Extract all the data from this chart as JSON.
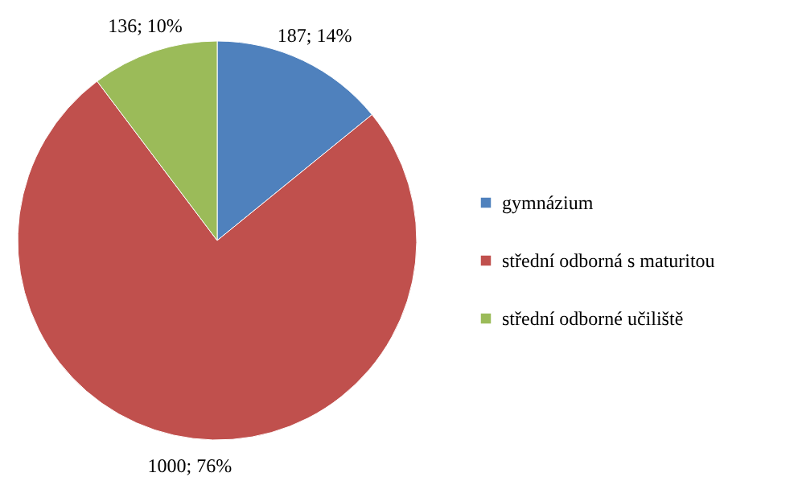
{
  "chart_data": {
    "type": "pie",
    "categories": [
      "gymnázium",
      "střední odborná s maturitou",
      "střední odborné učiliště"
    ],
    "values": [
      187,
      1000,
      136
    ],
    "colors": [
      "#4f81bd",
      "#c0504d",
      "#9bbb59"
    ],
    "value_labels": [
      "187; 14%",
      "1000; 76%",
      "136; 10%"
    ],
    "legend": "right"
  }
}
